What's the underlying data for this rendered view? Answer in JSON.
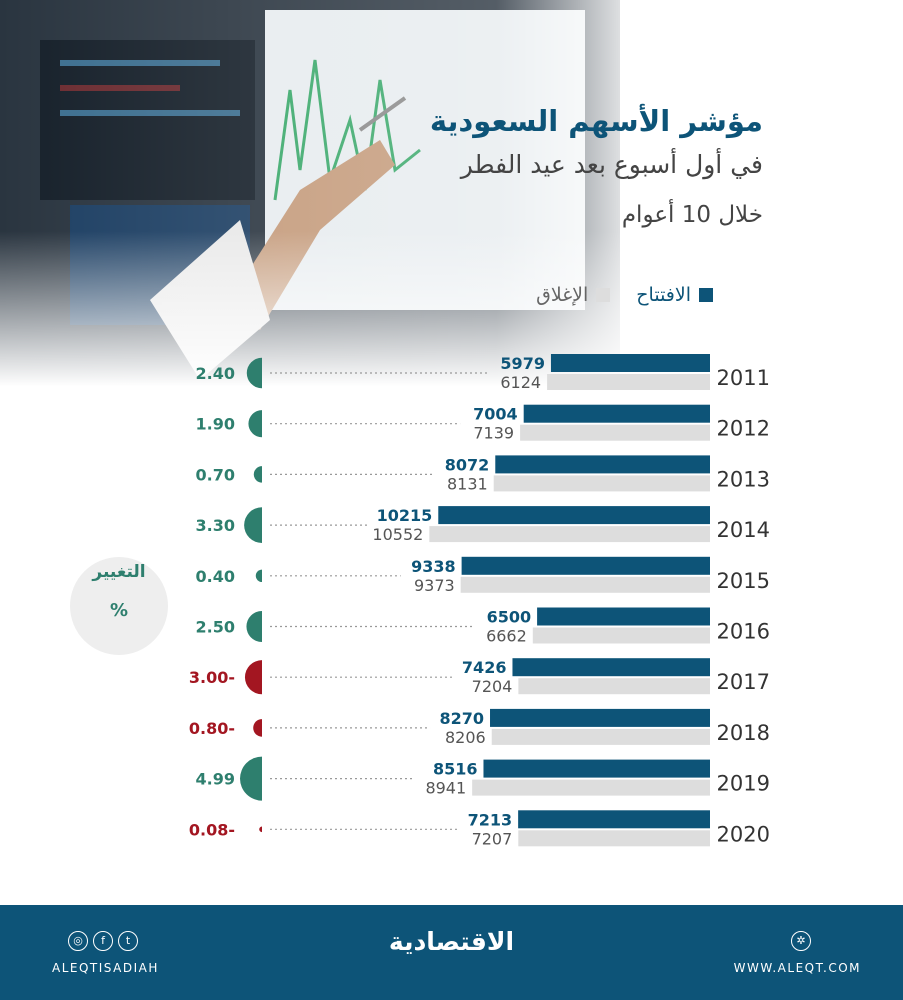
{
  "title": {
    "line1": "مؤشر الأسهم السعودية",
    "line2": "في أول أسبوع بعد عيد الفطر",
    "line3": "خلال 10 أعوام"
  },
  "legend": {
    "open_label": "الافتتاح",
    "close_label": "الإغلاق"
  },
  "change_box": {
    "title": "التغيير",
    "unit": "%"
  },
  "colors": {
    "open": "#0d5478",
    "close": "#dddddd",
    "positive": "#2e7f6e",
    "negative": "#a31621"
  },
  "chart_data": {
    "type": "bar",
    "categories": [
      "2011",
      "2012",
      "2013",
      "2014",
      "2015",
      "2016",
      "2017",
      "2018",
      "2019",
      "2020"
    ],
    "series": [
      {
        "name": "الافتتاح",
        "values": [
          5979,
          7004,
          8072,
          10215,
          9338,
          6500,
          7426,
          8270,
          8516,
          7213
        ]
      },
      {
        "name": "الإغلاق",
        "values": [
          6124,
          7139,
          8131,
          10552,
          9373,
          6662,
          7204,
          8206,
          8941,
          7207
        ]
      }
    ],
    "change_labels": [
      "2.40",
      "1.90",
      "0.70",
      "3.30",
      "0.40",
      "2.50",
      "3.00-",
      "0.80-",
      "4.99",
      "0.08-"
    ],
    "change_values": [
      2.4,
      1.9,
      0.7,
      3.3,
      0.4,
      2.5,
      -3.0,
      -0.8,
      4.99,
      -0.08
    ]
  },
  "footer": {
    "logo_text": "الاقتصادية",
    "left_text": "ALEQTISADIAH",
    "right_text": "WWW.ALEQT.COM",
    "social_icons": [
      "instagram-icon",
      "facebook-icon",
      "twitter-icon"
    ],
    "web_icon": "globe-icon"
  }
}
